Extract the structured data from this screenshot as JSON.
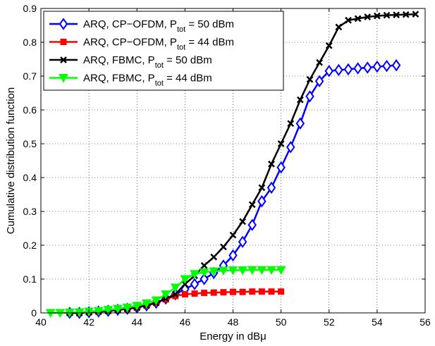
{
  "chart_data": {
    "type": "line",
    "xlabel": "Energy in dBμ",
    "ylabel": "Cumulative distribution function",
    "xlim": [
      40,
      56
    ],
    "ylim": [
      0,
      0.9
    ],
    "xticks": [
      "40",
      "42",
      "44",
      "46",
      "48",
      "50",
      "52",
      "54",
      "56"
    ],
    "yticks": [
      "0",
      "0.1",
      "0.2",
      "0.3",
      "0.4",
      "0.5",
      "0.6",
      "0.7",
      "0.8",
      "0.9"
    ],
    "grid": true,
    "legend_position": "top-left",
    "series": [
      {
        "name": "ARQ, CP−OFDM, P_tot = 50 dBm",
        "legend": {
          "pre": "ARQ, CP−OFDM, P",
          "sub": "tot",
          "post": " = 50 dBm"
        },
        "color": "#0000ff",
        "marker": "diamond",
        "x": [
          41.2,
          41.6,
          42.0,
          42.4,
          42.8,
          43.2,
          43.6,
          44.0,
          44.4,
          44.8,
          45.2,
          45.6,
          46.0,
          46.4,
          46.8,
          47.2,
          47.6,
          48.0,
          48.4,
          48.8,
          49.2,
          49.6,
          50.0,
          50.4,
          50.8,
          51.2,
          51.6,
          52.0,
          52.4,
          52.8,
          53.2,
          53.6,
          54.0,
          54.4,
          54.8
        ],
        "y": [
          0.0,
          0.0,
          0.002,
          0.004,
          0.006,
          0.009,
          0.012,
          0.016,
          0.022,
          0.03,
          0.042,
          0.055,
          0.07,
          0.085,
          0.1,
          0.118,
          0.14,
          0.17,
          0.21,
          0.26,
          0.33,
          0.37,
          0.43,
          0.49,
          0.56,
          0.64,
          0.685,
          0.715,
          0.718,
          0.72,
          0.723,
          0.725,
          0.728,
          0.73,
          0.732
        ]
      },
      {
        "name": "ARQ, CP−OFDM, P_tot = 44 dBm",
        "legend": {
          "pre": "ARQ, CP−OFDM, P",
          "sub": "tot",
          "post": " = 44 dBm"
        },
        "color": "#ff0000",
        "marker": "square",
        "x": [
          41.2,
          41.6,
          42.0,
          42.4,
          42.8,
          43.2,
          43.6,
          44.0,
          44.4,
          44.8,
          45.2,
          45.6,
          46.0,
          46.4,
          46.8,
          47.2,
          47.6,
          48.0,
          48.4,
          48.8,
          49.2,
          49.6,
          50.0
        ],
        "y": [
          0.0,
          0.0,
          0.002,
          0.004,
          0.006,
          0.009,
          0.012,
          0.016,
          0.022,
          0.03,
          0.04,
          0.05,
          0.055,
          0.057,
          0.059,
          0.06,
          0.061,
          0.062,
          0.062,
          0.063,
          0.063,
          0.063,
          0.063
        ]
      },
      {
        "name": "ARQ, FBMC, P_tot = 50 dBm",
        "legend": {
          "pre": "ARQ, FBMC, P",
          "sub": "tot",
          "post": " = 50 dBm"
        },
        "color": "#000000",
        "marker": "cross",
        "x": [
          41.2,
          41.6,
          42.0,
          42.4,
          42.8,
          43.2,
          43.6,
          44.0,
          44.4,
          44.8,
          45.2,
          45.6,
          46.0,
          46.4,
          46.8,
          47.2,
          47.6,
          48.0,
          48.4,
          48.8,
          49.2,
          49.6,
          50.0,
          50.4,
          50.8,
          51.2,
          51.6,
          52.0,
          52.4,
          52.8,
          53.2,
          53.6,
          54.0,
          54.4,
          54.8,
          55.2,
          55.6
        ],
        "y": [
          0.0,
          0.0,
          0.002,
          0.004,
          0.006,
          0.009,
          0.012,
          0.016,
          0.022,
          0.03,
          0.042,
          0.055,
          0.085,
          0.11,
          0.14,
          0.165,
          0.195,
          0.23,
          0.27,
          0.32,
          0.37,
          0.44,
          0.5,
          0.56,
          0.63,
          0.69,
          0.74,
          0.79,
          0.845,
          0.865,
          0.87,
          0.875,
          0.878,
          0.88,
          0.881,
          0.882,
          0.883
        ]
      },
      {
        "name": "ARQ, FBMC, P_tot = 44 dBm",
        "legend": {
          "pre": "ARQ, FBMC, P",
          "sub": "tot",
          "post": " = 44 dBm"
        },
        "color": "#00ff00",
        "marker": "triangle-down",
        "x": [
          40.4,
          40.8,
          41.2,
          41.6,
          42.0,
          42.4,
          42.8,
          43.2,
          43.6,
          44.0,
          44.4,
          44.8,
          45.2,
          45.6,
          46.0,
          46.4,
          46.8,
          47.2,
          47.6,
          48.0,
          48.4,
          48.8,
          49.2,
          49.6,
          50.0
        ],
        "y": [
          0.0,
          0.0,
          0.001,
          0.002,
          0.004,
          0.006,
          0.009,
          0.012,
          0.016,
          0.021,
          0.028,
          0.037,
          0.055,
          0.075,
          0.1,
          0.115,
          0.12,
          0.123,
          0.125,
          0.126,
          0.126,
          0.127,
          0.127,
          0.127,
          0.127
        ]
      }
    ]
  }
}
